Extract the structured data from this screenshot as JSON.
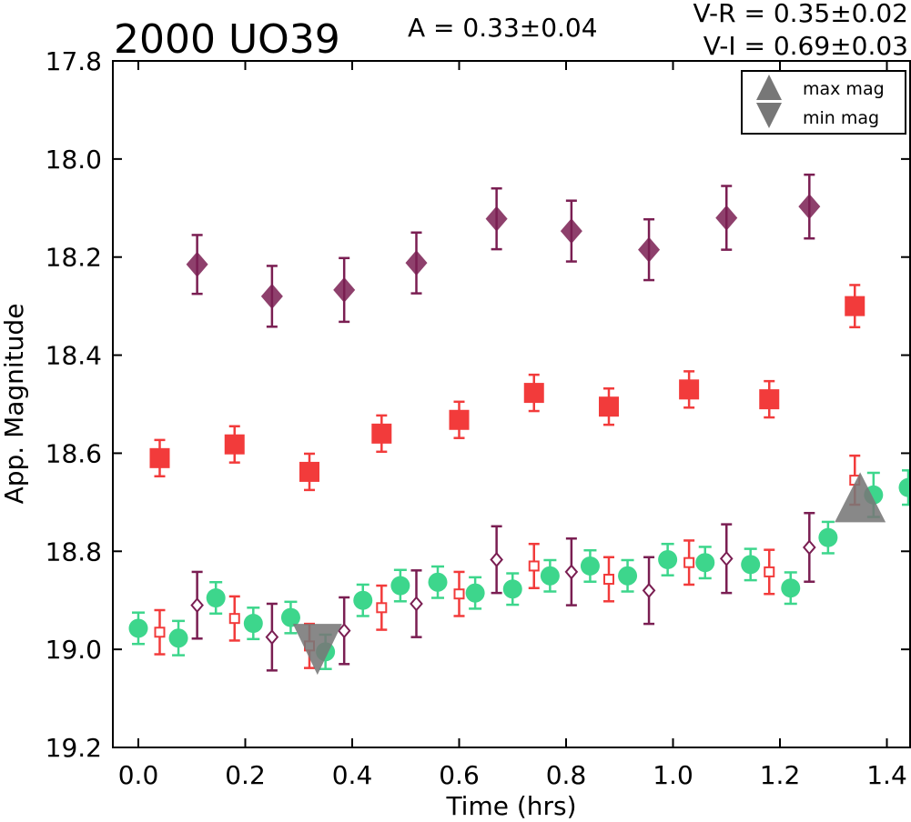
{
  "chart_data": {
    "type": "scatter",
    "title": "2000 UO39",
    "annotations": {
      "amplitude": "A  = 0.33±0.04",
      "vr": "V-R = 0.35±0.02",
      "vi": "V-I  = 0.69±0.03"
    },
    "xlabel": "Time (hrs)",
    "ylabel": "App. Magnitude",
    "xlim": [
      -0.1,
      1.44
    ],
    "ylim": [
      17.8,
      19.2
    ],
    "y_inverted": true,
    "grid": false,
    "xticks": [
      0.0,
      0.2,
      0.4,
      0.6,
      0.8,
      1.0,
      1.2,
      1.4
    ],
    "xtick_labels": [
      "0.0",
      "0.2",
      "0.4",
      "0.6",
      "0.8",
      "1.0",
      "1.2",
      "1.4"
    ],
    "yticks": [
      17.8,
      18.0,
      18.2,
      18.4,
      18.6,
      18.8,
      19.0,
      19.2
    ],
    "ytick_labels": [
      "17.8",
      "18.0",
      "18.2",
      "18.4",
      "18.6",
      "18.8",
      "19.0",
      "19.2"
    ],
    "legend": {
      "placement": "top-right",
      "entries": [
        {
          "label": "max mag",
          "marker": "triangle-up",
          "color": "#777777"
        },
        {
          "label": "min mag",
          "marker": "triangle-down",
          "color": "#777777"
        }
      ]
    },
    "series": [
      {
        "marker": "diamond-filled",
        "color": "#7a1e52",
        "points": [
          {
            "x": 0.11,
            "y": 18.215,
            "err": 0.06
          },
          {
            "x": 0.25,
            "y": 18.28,
            "err": 0.062
          },
          {
            "x": 0.385,
            "y": 18.267,
            "err": 0.065
          },
          {
            "x": 0.52,
            "y": 18.212,
            "err": 0.062
          },
          {
            "x": 0.67,
            "y": 18.122,
            "err": 0.062
          },
          {
            "x": 0.81,
            "y": 18.147,
            "err": 0.062
          },
          {
            "x": 0.955,
            "y": 18.185,
            "err": 0.062
          },
          {
            "x": 1.1,
            "y": 18.12,
            "err": 0.065
          },
          {
            "x": 1.255,
            "y": 18.097,
            "err": 0.065
          }
        ]
      },
      {
        "marker": "square-filled",
        "color": "#f23b3b",
        "points": [
          {
            "x": 0.04,
            "y": 18.61,
            "err": 0.037
          },
          {
            "x": 0.18,
            "y": 18.582,
            "err": 0.037
          },
          {
            "x": 0.32,
            "y": 18.638,
            "err": 0.037
          },
          {
            "x": 0.455,
            "y": 18.56,
            "err": 0.037
          },
          {
            "x": 0.6,
            "y": 18.532,
            "err": 0.037
          },
          {
            "x": 0.74,
            "y": 18.477,
            "err": 0.037
          },
          {
            "x": 0.88,
            "y": 18.505,
            "err": 0.037
          },
          {
            "x": 1.03,
            "y": 18.47,
            "err": 0.037
          },
          {
            "x": 1.18,
            "y": 18.49,
            "err": 0.037
          },
          {
            "x": 1.34,
            "y": 18.3,
            "err": 0.043
          }
        ]
      },
      {
        "marker": "circle-filled",
        "color": "#3dd68c",
        "points": [
          {
            "x": 0.0,
            "y": 18.957,
            "err": 0.032
          },
          {
            "x": 0.075,
            "y": 18.977,
            "err": 0.035
          },
          {
            "x": 0.145,
            "y": 18.895,
            "err": 0.032
          },
          {
            "x": 0.215,
            "y": 18.947,
            "err": 0.032
          },
          {
            "x": 0.285,
            "y": 18.935,
            "err": 0.032
          },
          {
            "x": 0.35,
            "y": 19.005,
            "err": 0.035
          },
          {
            "x": 0.42,
            "y": 18.9,
            "err": 0.032
          },
          {
            "x": 0.49,
            "y": 18.87,
            "err": 0.032
          },
          {
            "x": 0.56,
            "y": 18.863,
            "err": 0.032
          },
          {
            "x": 0.63,
            "y": 18.885,
            "err": 0.032
          },
          {
            "x": 0.7,
            "y": 18.877,
            "err": 0.032
          },
          {
            "x": 0.77,
            "y": 18.85,
            "err": 0.032
          },
          {
            "x": 0.845,
            "y": 18.83,
            "err": 0.032
          },
          {
            "x": 0.915,
            "y": 18.85,
            "err": 0.032
          },
          {
            "x": 0.99,
            "y": 18.817,
            "err": 0.032
          },
          {
            "x": 1.06,
            "y": 18.823,
            "err": 0.032
          },
          {
            "x": 1.145,
            "y": 18.827,
            "err": 0.032
          },
          {
            "x": 1.22,
            "y": 18.875,
            "err": 0.032
          },
          {
            "x": 1.29,
            "y": 18.772,
            "err": 0.032
          },
          {
            "x": 1.375,
            "y": 18.685,
            "err": 0.045
          },
          {
            "x": 1.44,
            "y": 18.67,
            "err": 0.035
          }
        ]
      },
      {
        "marker": "square-open",
        "color": "#f23b3b",
        "points": [
          {
            "x": 0.04,
            "y": 18.965,
            "err": 0.045
          },
          {
            "x": 0.18,
            "y": 18.937,
            "err": 0.045
          },
          {
            "x": 0.32,
            "y": 18.993,
            "err": 0.045
          },
          {
            "x": 0.455,
            "y": 18.915,
            "err": 0.045
          },
          {
            "x": 0.6,
            "y": 18.887,
            "err": 0.045
          },
          {
            "x": 0.74,
            "y": 18.83,
            "err": 0.045
          },
          {
            "x": 0.88,
            "y": 18.857,
            "err": 0.045
          },
          {
            "x": 1.03,
            "y": 18.823,
            "err": 0.045
          },
          {
            "x": 1.18,
            "y": 18.842,
            "err": 0.045
          },
          {
            "x": 1.34,
            "y": 18.655,
            "err": 0.05
          }
        ]
      },
      {
        "marker": "diamond-open",
        "color": "#7a1e52",
        "points": [
          {
            "x": 0.11,
            "y": 18.91,
            "err": 0.068
          },
          {
            "x": 0.25,
            "y": 18.975,
            "err": 0.068
          },
          {
            "x": 0.385,
            "y": 18.962,
            "err": 0.068
          },
          {
            "x": 0.52,
            "y": 18.907,
            "err": 0.068
          },
          {
            "x": 0.67,
            "y": 18.817,
            "err": 0.068
          },
          {
            "x": 0.81,
            "y": 18.842,
            "err": 0.068
          },
          {
            "x": 0.955,
            "y": 18.88,
            "err": 0.068
          },
          {
            "x": 1.1,
            "y": 18.815,
            "err": 0.07
          },
          {
            "x": 1.255,
            "y": 18.792,
            "err": 0.07
          }
        ]
      }
    ],
    "extrema": [
      {
        "type": "min",
        "x": 0.335,
        "y": 19.0,
        "color": "#777777"
      },
      {
        "type": "max",
        "x": 1.35,
        "y": 18.7,
        "color": "#777777"
      }
    ]
  }
}
